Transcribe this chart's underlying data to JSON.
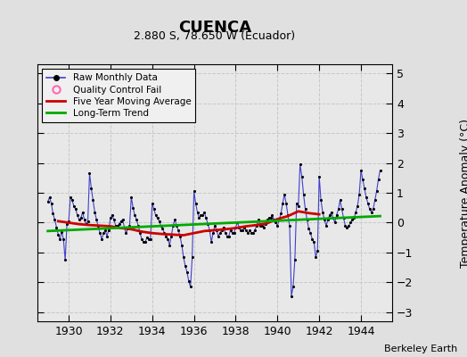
{
  "title": "CUENCA",
  "subtitle": "2.880 S, 78.650 W (Ecuador)",
  "ylabel": "Temperature Anomaly (°C)",
  "credit": "Berkeley Earth",
  "xlim": [
    1928.5,
    1945.5
  ],
  "ylim": [
    -3.3,
    5.3
  ],
  "yticks": [
    -3,
    -2,
    -1,
    0,
    1,
    2,
    3,
    4,
    5
  ],
  "xticks": [
    1930,
    1932,
    1934,
    1936,
    1938,
    1940,
    1942,
    1944
  ],
  "background_color": "#e0e0e0",
  "plot_background": "#e8e8e8",
  "grid_color": "#c8c8c8",
  "raw_color": "#4040cc",
  "dot_color": "#000000",
  "ma_color": "#cc0000",
  "trend_color": "#00aa00",
  "raw_data_x": [
    1929.0,
    1929.083,
    1929.167,
    1929.25,
    1929.333,
    1929.417,
    1929.5,
    1929.583,
    1929.667,
    1929.75,
    1929.833,
    1929.917,
    1930.0,
    1930.083,
    1930.167,
    1930.25,
    1930.333,
    1930.417,
    1930.5,
    1930.583,
    1930.667,
    1930.75,
    1930.833,
    1930.917,
    1931.0,
    1931.083,
    1931.167,
    1931.25,
    1931.333,
    1931.417,
    1931.5,
    1931.583,
    1931.667,
    1931.75,
    1931.833,
    1931.917,
    1932.0,
    1932.083,
    1932.167,
    1932.25,
    1932.333,
    1932.417,
    1932.5,
    1932.583,
    1932.667,
    1932.75,
    1932.833,
    1932.917,
    1933.0,
    1933.083,
    1933.167,
    1933.25,
    1933.333,
    1933.417,
    1933.5,
    1933.583,
    1933.667,
    1933.75,
    1933.833,
    1933.917,
    1934.0,
    1934.083,
    1934.167,
    1934.25,
    1934.333,
    1934.417,
    1934.5,
    1934.583,
    1934.667,
    1934.75,
    1934.833,
    1934.917,
    1935.0,
    1935.083,
    1935.167,
    1935.25,
    1935.333,
    1935.417,
    1935.5,
    1935.583,
    1935.667,
    1935.75,
    1935.833,
    1935.917,
    1936.0,
    1936.083,
    1936.167,
    1936.25,
    1936.333,
    1936.417,
    1936.5,
    1936.583,
    1936.667,
    1936.75,
    1936.833,
    1936.917,
    1937.0,
    1937.083,
    1937.167,
    1937.25,
    1937.333,
    1937.417,
    1937.5,
    1937.583,
    1937.667,
    1937.75,
    1937.833,
    1937.917,
    1938.0,
    1938.083,
    1938.167,
    1938.25,
    1938.333,
    1938.417,
    1938.5,
    1938.583,
    1938.667,
    1938.75,
    1938.833,
    1938.917,
    1939.0,
    1939.083,
    1939.167,
    1939.25,
    1939.333,
    1939.417,
    1939.5,
    1939.583,
    1939.667,
    1939.75,
    1939.833,
    1939.917,
    1940.0,
    1940.083,
    1940.167,
    1940.25,
    1940.333,
    1940.417,
    1940.5,
    1940.583,
    1940.667,
    1940.75,
    1940.833,
    1940.917,
    1941.0,
    1941.083,
    1941.167,
    1941.25,
    1941.333,
    1941.417,
    1941.5,
    1941.583,
    1941.667,
    1941.75,
    1941.833,
    1941.917,
    1942.0,
    1942.083,
    1942.167,
    1942.25,
    1942.333,
    1942.417,
    1942.5,
    1942.583,
    1942.667,
    1942.75,
    1942.833,
    1942.917,
    1943.0,
    1943.083,
    1943.167,
    1943.25,
    1943.333,
    1943.417,
    1943.5,
    1943.583,
    1943.667,
    1943.75,
    1943.833,
    1943.917,
    1944.0,
    1944.083,
    1944.167,
    1944.25,
    1944.333,
    1944.417,
    1944.5,
    1944.583,
    1944.667,
    1944.75,
    1944.833,
    1944.917
  ],
  "raw_data_y": [
    0.7,
    0.85,
    0.65,
    0.3,
    0.1,
    -0.15,
    -0.4,
    -0.55,
    -0.3,
    -0.55,
    -1.25,
    -0.05,
    0.05,
    0.85,
    0.75,
    0.55,
    0.45,
    0.25,
    0.1,
    0.15,
    0.35,
    0.1,
    -0.05,
    0.05,
    1.65,
    1.15,
    0.75,
    0.35,
    0.1,
    -0.15,
    -0.35,
    -0.55,
    -0.35,
    -0.25,
    -0.45,
    -0.25,
    0.15,
    0.25,
    0.1,
    -0.1,
    -0.1,
    -0.05,
    0.05,
    0.1,
    -0.15,
    -0.35,
    -0.2,
    -0.1,
    0.85,
    0.5,
    0.25,
    0.1,
    -0.1,
    -0.35,
    -0.55,
    -0.65,
    -0.65,
    -0.5,
    -0.55,
    -0.55,
    0.65,
    0.45,
    0.25,
    0.15,
    0.05,
    -0.1,
    -0.2,
    -0.35,
    -0.45,
    -0.55,
    -0.75,
    -0.45,
    -0.1,
    0.1,
    -0.1,
    -0.25,
    -0.45,
    -0.75,
    -1.15,
    -1.45,
    -1.65,
    -1.95,
    -2.15,
    -1.15,
    1.05,
    0.65,
    0.35,
    0.15,
    0.25,
    0.25,
    0.35,
    0.15,
    -0.05,
    -0.25,
    -0.65,
    -0.35,
    -0.1,
    -0.25,
    -0.45,
    -0.35,
    -0.25,
    -0.15,
    -0.35,
    -0.45,
    -0.45,
    -0.25,
    -0.35,
    -0.35,
    -0.15,
    0.0,
    -0.15,
    -0.25,
    -0.25,
    -0.15,
    -0.25,
    -0.35,
    -0.25,
    -0.35,
    -0.35,
    -0.25,
    -0.1,
    0.1,
    -0.1,
    -0.1,
    -0.15,
    -0.05,
    0.1,
    0.15,
    0.15,
    0.25,
    0.1,
    0.0,
    -0.1,
    0.1,
    0.3,
    0.65,
    0.95,
    0.65,
    0.25,
    -0.1,
    -2.45,
    -2.15,
    -1.25,
    0.65,
    0.55,
    1.95,
    1.55,
    0.95,
    0.45,
    0.1,
    -0.2,
    -0.35,
    -0.55,
    -0.65,
    -1.15,
    -0.95,
    1.55,
    0.75,
    0.35,
    0.1,
    -0.1,
    0.1,
    0.25,
    0.35,
    0.15,
    0.0,
    0.25,
    0.45,
    0.75,
    0.45,
    0.15,
    -0.1,
    -0.15,
    -0.1,
    0.0,
    0.1,
    0.15,
    0.35,
    0.55,
    0.95,
    1.75,
    1.45,
    1.15,
    0.85,
    0.65,
    0.45,
    0.35,
    0.45,
    0.75,
    1.05,
    1.45,
    1.75
  ],
  "ma_data_x": [
    1929.5,
    1930.0,
    1930.5,
    1931.0,
    1931.5,
    1932.0,
    1932.5,
    1933.0,
    1933.5,
    1934.0,
    1934.5,
    1935.0,
    1935.5,
    1936.0,
    1936.5,
    1937.0,
    1937.5,
    1938.0,
    1938.5,
    1939.0,
    1939.5,
    1940.0,
    1940.5,
    1941.0,
    1941.5,
    1942.0
  ],
  "ma_data_y": [
    0.05,
    0.0,
    -0.05,
    -0.08,
    -0.1,
    -0.12,
    -0.18,
    -0.22,
    -0.3,
    -0.35,
    -0.38,
    -0.4,
    -0.42,
    -0.35,
    -0.28,
    -0.25,
    -0.22,
    -0.18,
    -0.12,
    -0.08,
    -0.02,
    0.12,
    0.22,
    0.38,
    0.32,
    0.28
  ],
  "trend_x": [
    1929.0,
    1944.917
  ],
  "trend_y": [
    -0.28,
    0.22
  ]
}
